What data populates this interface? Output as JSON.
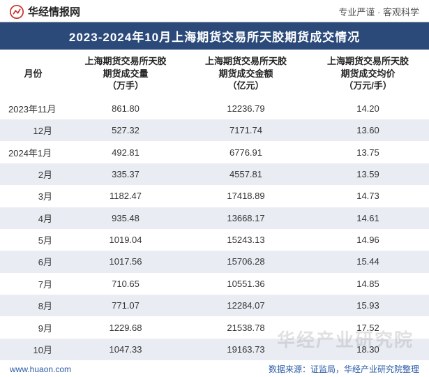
{
  "header": {
    "logo_text": "华经情报网",
    "slogan_left": "专业严谨",
    "slogan_right": "客观科学",
    "slogan_sep": "·"
  },
  "title": "2023-2024年10月上海期货交易所天胶期货成交情况",
  "columns": {
    "month": "月份",
    "volume_l1": "上海期货交易所天胶",
    "volume_l2": "期货成交量",
    "volume_l3": "（万手）",
    "amount_l1": "上海期货交易所天胶",
    "amount_l2": "期货成交金额",
    "amount_l3": "（亿元）",
    "avg_l1": "上海期货交易所天胶",
    "avg_l2": "期货成交均价",
    "avg_l3": "（万元/手）"
  },
  "rows": [
    {
      "month": "2023年11月",
      "volume": "861.80",
      "amount": "12236.79",
      "avg": "14.20",
      "align": "left"
    },
    {
      "month": "12月",
      "volume": "527.32",
      "amount": "7171.74",
      "avg": "13.60",
      "align": "right"
    },
    {
      "month": "2024年1月",
      "volume": "492.81",
      "amount": "6776.91",
      "avg": "13.75",
      "align": "left"
    },
    {
      "month": "2月",
      "volume": "335.37",
      "amount": "4557.81",
      "avg": "13.59",
      "align": "right"
    },
    {
      "month": "3月",
      "volume": "1182.47",
      "amount": "17418.89",
      "avg": "14.73",
      "align": "right"
    },
    {
      "month": "4月",
      "volume": "935.48",
      "amount": "13668.17",
      "avg": "14.61",
      "align": "right"
    },
    {
      "month": "5月",
      "volume": "1019.04",
      "amount": "15243.13",
      "avg": "14.96",
      "align": "right"
    },
    {
      "month": "6月",
      "volume": "1017.56",
      "amount": "15706.28",
      "avg": "15.44",
      "align": "right"
    },
    {
      "month": "7月",
      "volume": "710.65",
      "amount": "10551.36",
      "avg": "14.85",
      "align": "right"
    },
    {
      "month": "8月",
      "volume": "771.07",
      "amount": "12284.07",
      "avg": "15.93",
      "align": "right"
    },
    {
      "month": "9月",
      "volume": "1229.68",
      "amount": "21538.78",
      "avg": "17.52",
      "align": "right"
    },
    {
      "month": "10月",
      "volume": "1047.33",
      "amount": "19163.73",
      "avg": "18.30",
      "align": "right"
    }
  ],
  "styling": {
    "title_bg": "#2b4a7a",
    "title_color": "#ffffff",
    "alt_row_bg": "#e9edf3",
    "text_color": "#333333",
    "header_text_color": "#222222",
    "footer_color": "#2a5aa8",
    "font_family": "Microsoft YaHei",
    "title_fontsize": 17,
    "header_fontsize": 13,
    "cell_fontsize": 13,
    "footer_fontsize": 12
  },
  "footer": {
    "url": "www.huaon.com",
    "source": "数据来源：证监局，华经产业研究院整理"
  },
  "watermark": "华经产业研究院"
}
